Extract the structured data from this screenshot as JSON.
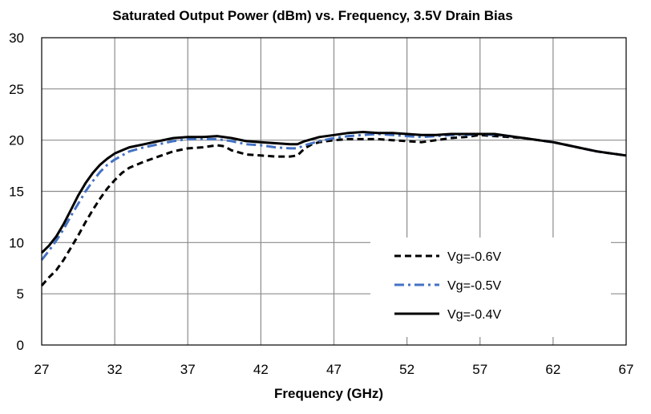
{
  "chart_data": {
    "type": "line",
    "title": "Saturated Output Power (dBm) vs. Frequency, 3.5V Drain Bias",
    "xlabel": "Frequency (GHz)",
    "ylabel": "",
    "xlim": [
      27,
      67
    ],
    "ylim": [
      0,
      30
    ],
    "xticks": [
      27,
      32,
      37,
      42,
      47,
      52,
      57,
      62,
      67
    ],
    "yticks": [
      0,
      5,
      10,
      15,
      20,
      25,
      30
    ],
    "grid": true,
    "legend_position": "bottom-right",
    "series": [
      {
        "name": "Vg=-0.6V",
        "color": "#000000",
        "style": "dashed",
        "x": [
          27,
          27.5,
          28,
          28.5,
          29,
          29.5,
          30,
          30.5,
          31,
          31.5,
          32,
          32.5,
          33,
          33.5,
          34,
          35,
          36,
          37,
          38,
          39,
          39.5,
          40,
          41,
          42,
          43,
          44,
          44.5,
          45,
          45.5,
          46,
          47,
          48,
          49,
          50,
          51,
          52,
          53,
          54,
          55,
          56,
          57,
          58,
          59,
          60,
          61,
          62,
          63,
          64,
          65,
          66,
          67
        ],
        "y": [
          5.8,
          6.6,
          7.3,
          8.3,
          9.5,
          10.7,
          12.0,
          13.2,
          14.3,
          15.3,
          16.1,
          16.8,
          17.3,
          17.6,
          17.9,
          18.4,
          18.9,
          19.2,
          19.3,
          19.5,
          19.4,
          19.0,
          18.6,
          18.5,
          18.4,
          18.4,
          18.5,
          19.2,
          19.6,
          19.8,
          20.0,
          20.1,
          20.1,
          20.1,
          20.0,
          19.9,
          19.8,
          20.0,
          20.2,
          20.3,
          20.5,
          20.4,
          20.3,
          20.2,
          20.0,
          19.8,
          19.5,
          19.2,
          18.9,
          18.7,
          18.5
        ]
      },
      {
        "name": "Vg=-0.5V",
        "color": "#4472C4",
        "style": "dash-dot",
        "x": [
          27,
          27.5,
          28,
          28.5,
          29,
          29.5,
          30,
          30.5,
          31,
          31.5,
          32,
          32.5,
          33,
          34,
          35,
          36,
          37,
          38,
          39,
          40,
          41,
          42,
          43,
          44,
          44.5,
          45,
          46,
          47,
          48,
          49,
          50,
          51,
          52,
          53,
          54,
          55,
          56,
          57,
          58,
          59,
          60,
          61,
          62,
          63,
          64,
          65,
          66,
          67
        ],
        "y": [
          8.3,
          9.2,
          10.2,
          11.3,
          12.6,
          13.8,
          15.0,
          16.0,
          16.9,
          17.6,
          18.1,
          18.5,
          18.9,
          19.3,
          19.6,
          19.9,
          20.1,
          20.1,
          20.1,
          19.9,
          19.6,
          19.5,
          19.3,
          19.2,
          19.2,
          19.5,
          19.9,
          20.2,
          20.4,
          20.5,
          20.6,
          20.5,
          20.4,
          20.3,
          20.4,
          20.5,
          20.5,
          20.6,
          20.5,
          20.4,
          20.2,
          20.0,
          19.8,
          19.5,
          19.2,
          18.9,
          18.7,
          18.5
        ]
      },
      {
        "name": "Vg=-0.4V",
        "color": "#000000",
        "style": "solid",
        "x": [
          27,
          27.5,
          28,
          28.5,
          29,
          29.5,
          30,
          30.5,
          31,
          31.5,
          32,
          32.5,
          33,
          34,
          35,
          36,
          37,
          38,
          39,
          40,
          41,
          42,
          43,
          44,
          44.5,
          45,
          46,
          47,
          48,
          49,
          50,
          51,
          52,
          53,
          54,
          55,
          56,
          57,
          58,
          59,
          60,
          61,
          62,
          63,
          64,
          65,
          66,
          67
        ],
        "y": [
          9.0,
          9.7,
          10.6,
          11.8,
          13.2,
          14.6,
          15.8,
          16.8,
          17.6,
          18.2,
          18.7,
          19.0,
          19.3,
          19.6,
          19.9,
          20.2,
          20.3,
          20.3,
          20.4,
          20.2,
          19.9,
          19.8,
          19.7,
          19.6,
          19.6,
          19.9,
          20.3,
          20.5,
          20.7,
          20.8,
          20.7,
          20.7,
          20.6,
          20.5,
          20.5,
          20.6,
          20.6,
          20.6,
          20.6,
          20.4,
          20.2,
          20.0,
          19.8,
          19.5,
          19.2,
          18.9,
          18.7,
          18.5
        ]
      }
    ]
  }
}
